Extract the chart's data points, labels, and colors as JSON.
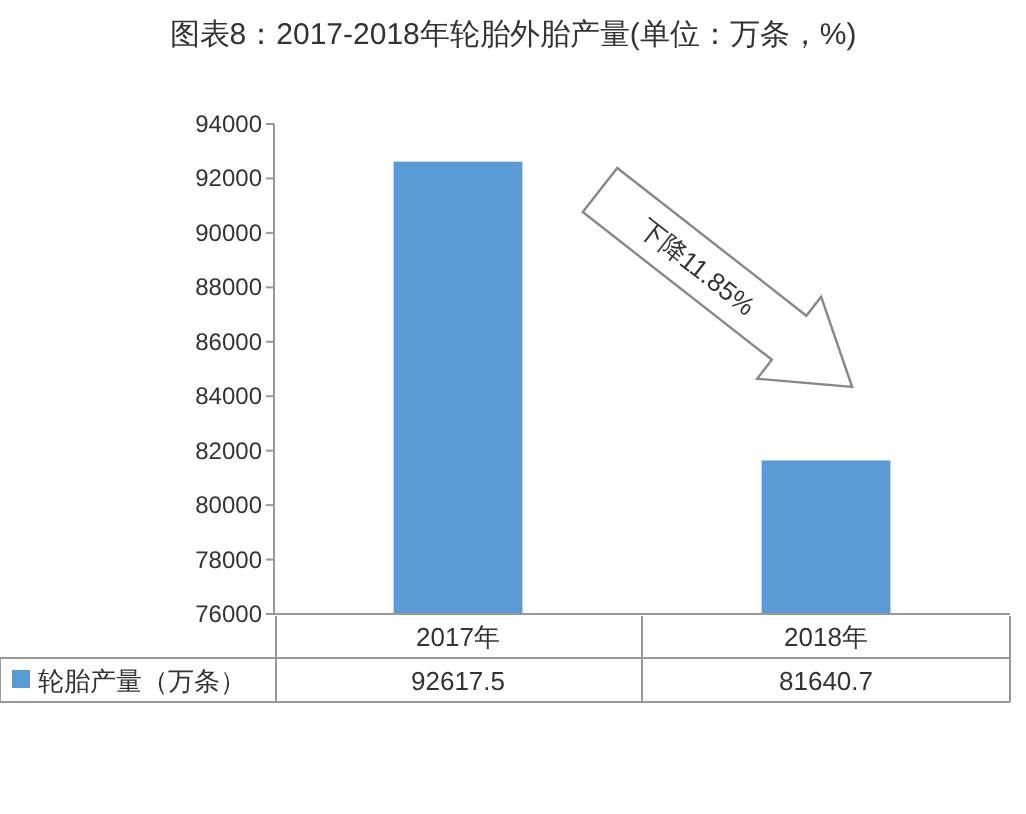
{
  "chart_data": {
    "type": "bar",
    "title": "图表8：2017-2018年轮胎外胎产量(单位：万条，%)",
    "categories": [
      "2017年",
      "2018年"
    ],
    "series": [
      {
        "name": "轮胎产量（万条）",
        "color": "#5b9bd5",
        "values": [
          92617.5,
          81640.7
        ]
      }
    ],
    "ylim": [
      76000,
      94000
    ],
    "yticks": [
      76000,
      78000,
      80000,
      82000,
      84000,
      86000,
      88000,
      90000,
      92000,
      94000
    ],
    "data_labels": true,
    "legend": "bottom left",
    "grid": false,
    "annotations": [
      "下降11.85%"
    ]
  }
}
